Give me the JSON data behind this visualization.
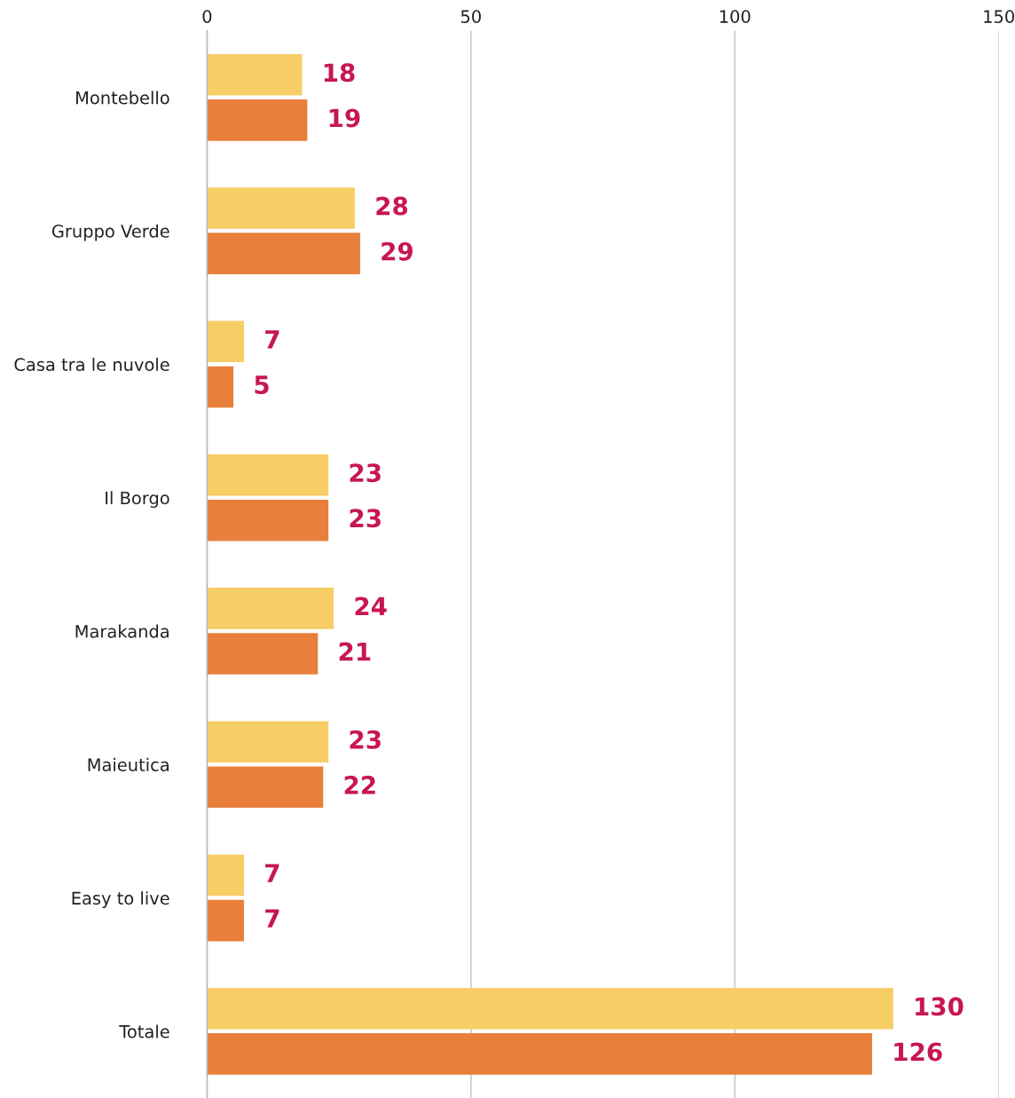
{
  "chart_data": {
    "type": "bar",
    "orientation": "horizontal",
    "categories": [
      "Montebello",
      "Gruppo Verde",
      "Casa tra le nuvole",
      "Il Borgo",
      "Marakanda",
      "Maieutica",
      "Easy to live",
      "Totale"
    ],
    "series": [
      {
        "color": "#f7cd66",
        "values": [
          18,
          28,
          7,
          23,
          24,
          23,
          7,
          130
        ]
      },
      {
        "color": "#e8803c",
        "values": [
          19,
          29,
          5,
          23,
          21,
          22,
          7,
          126
        ]
      }
    ],
    "xlim": [
      0,
      150
    ],
    "xticks": [
      0,
      50,
      100,
      150
    ],
    "grid": "x",
    "data_labels": true,
    "legend": false
  }
}
